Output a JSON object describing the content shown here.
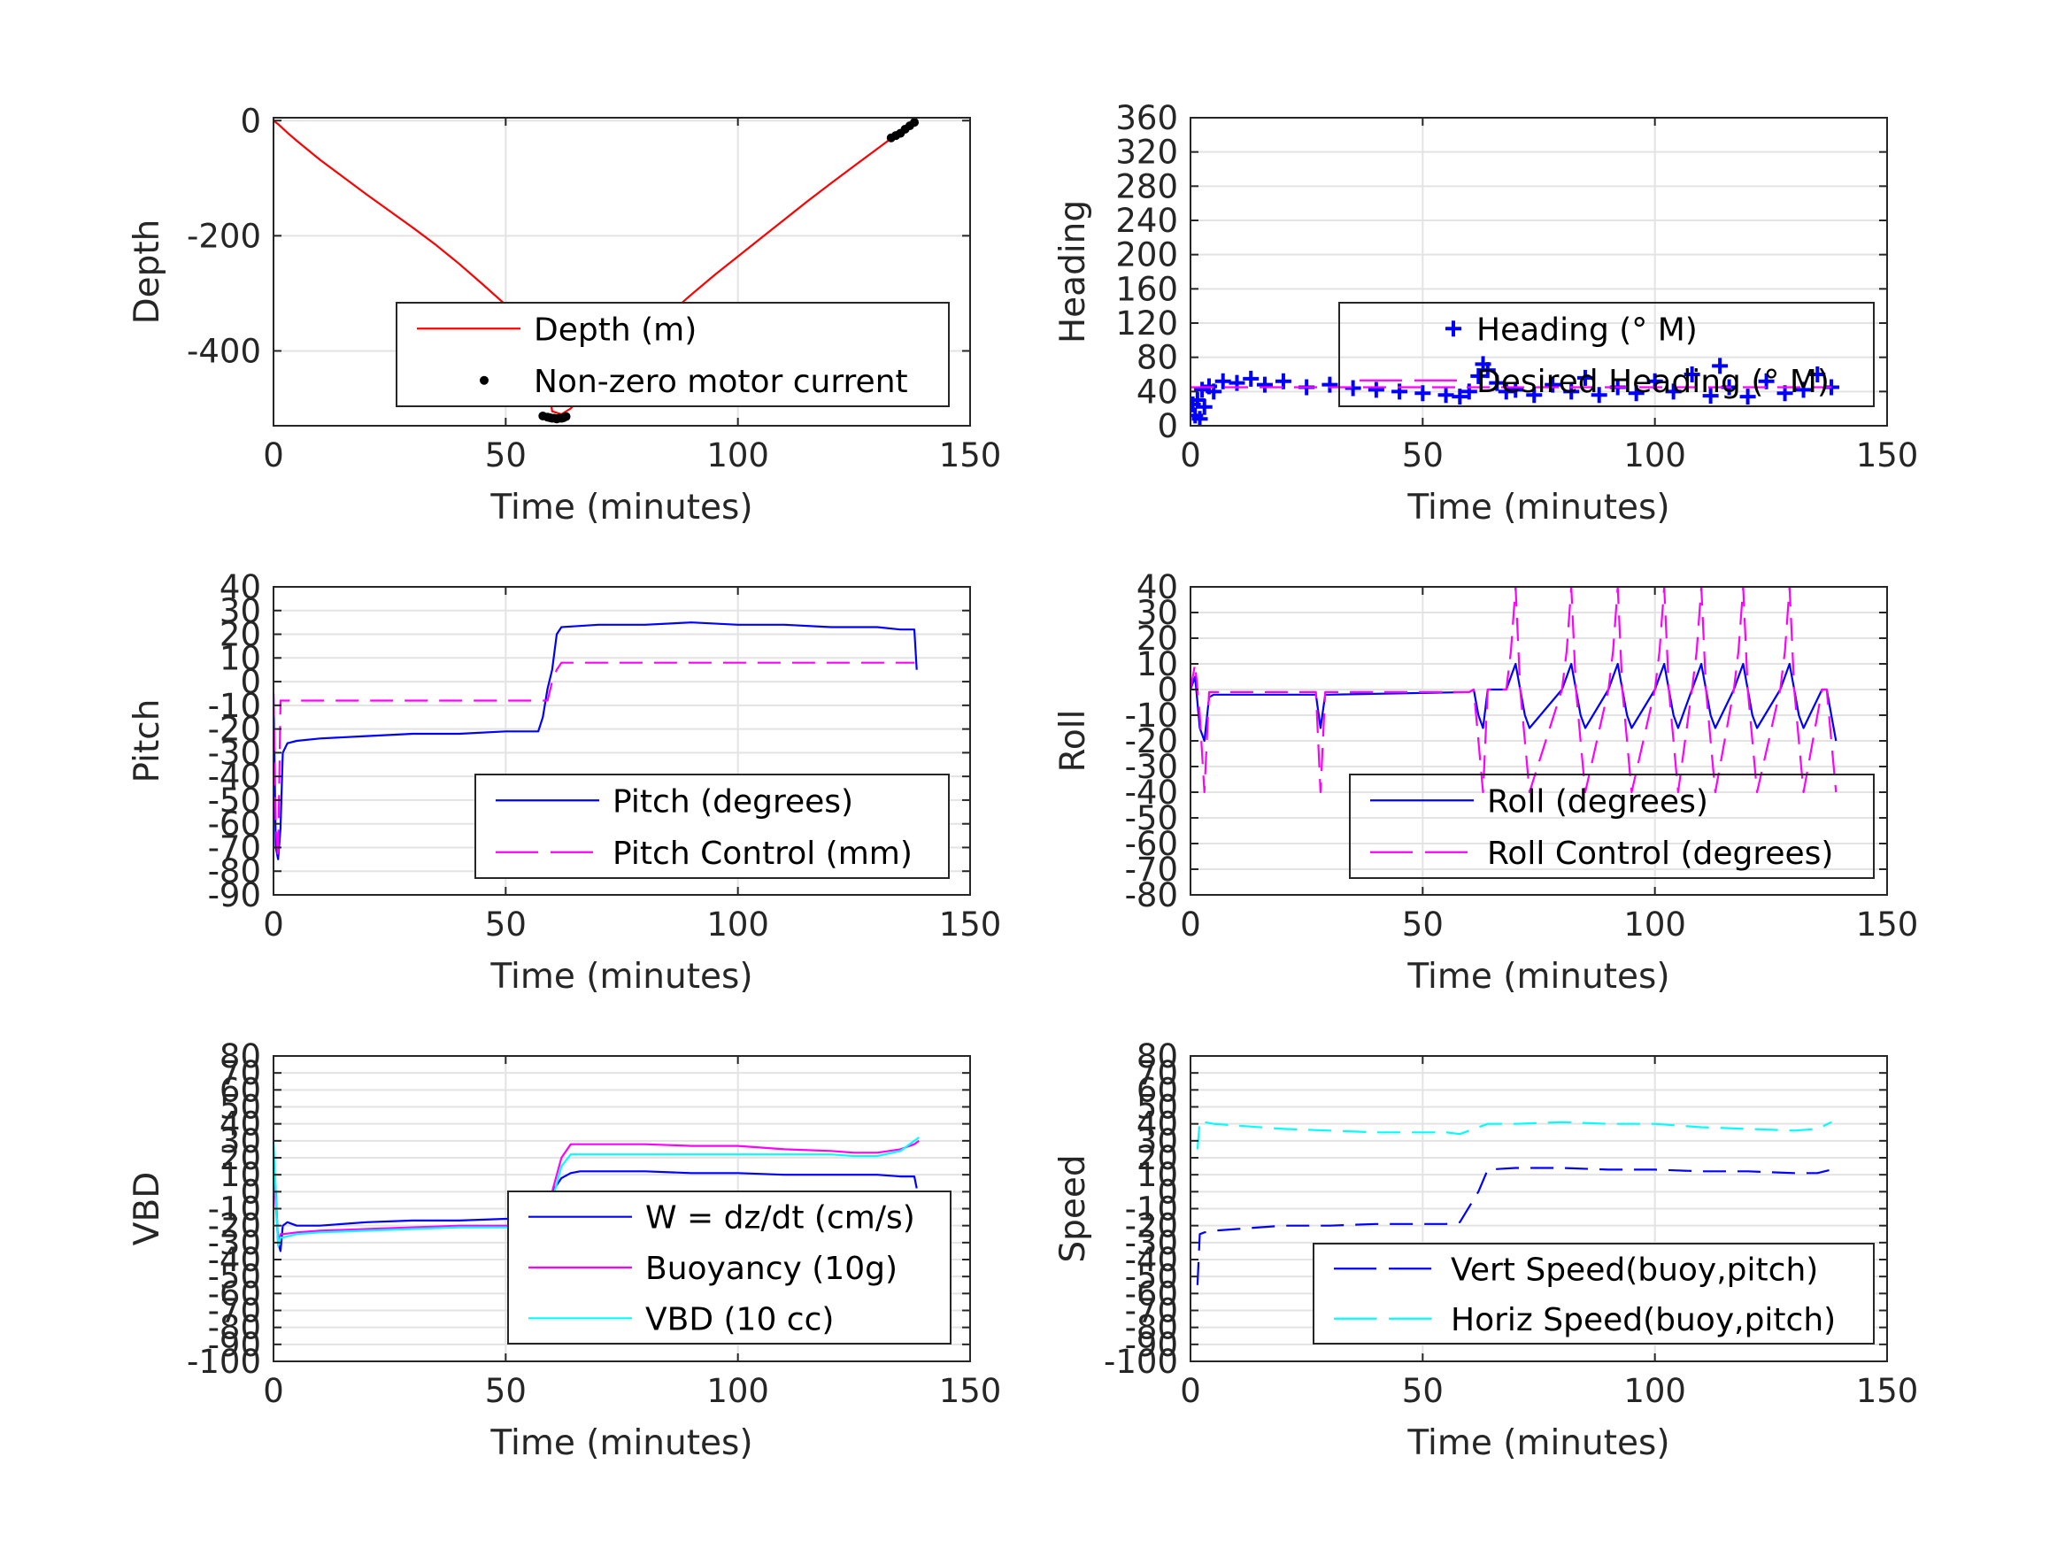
{
  "chart_data": [
    {
      "type": "line",
      "xlabel": "Time (minutes)",
      "ylabel": "Depth",
      "xlim": [
        0,
        150
      ],
      "ylim": [
        -530,
        5
      ],
      "xticks": [
        0,
        50,
        100,
        150
      ],
      "yticks": [
        -400,
        -200,
        0
      ],
      "grid": true,
      "legend_position": "bottom-right",
      "series": [
        {
          "name": "Depth (m)",
          "style": "solid",
          "color": "#ff0000",
          "x": [
            0,
            1,
            3,
            5,
            10,
            15,
            20,
            25,
            30,
            35,
            40,
            45,
            50,
            55,
            58,
            60,
            62,
            64,
            66,
            70,
            75,
            80,
            85,
            90,
            95,
            100,
            105,
            110,
            115,
            120,
            125,
            130,
            135,
            138
          ],
          "y": [
            0,
            -6,
            -21,
            -35,
            -68,
            -98,
            -128,
            -157,
            -186,
            -216,
            -249,
            -284,
            -320,
            -357,
            -385,
            -505,
            -510,
            -500,
            -480,
            -448,
            -410,
            -373,
            -337,
            -302,
            -268,
            -236,
            -204,
            -172,
            -140,
            -109,
            -79,
            -49,
            -19,
            -2
          ]
        },
        {
          "name": "Non-zero motor current",
          "style": "dots",
          "color": "#000000",
          "x": [
            58,
            59,
            59.5,
            60,
            60.5,
            61,
            61.5,
            62,
            62.5,
            63,
            133,
            134,
            135,
            136,
            137,
            138
          ],
          "y": [
            -513,
            -515,
            -516,
            -517,
            -517,
            -518,
            -517,
            -517,
            -516,
            -514,
            -30,
            -26,
            -22,
            -15,
            -9,
            -3
          ]
        }
      ]
    },
    {
      "type": "scatter",
      "xlabel": "Time (minutes)",
      "ylabel": "Heading",
      "xlim": [
        0,
        150
      ],
      "ylim": [
        0,
        360
      ],
      "xticks": [
        0,
        50,
        100,
        150
      ],
      "yticks": [
        0,
        40,
        80,
        120,
        160,
        200,
        240,
        280,
        320,
        360
      ],
      "grid": true,
      "legend_position": "bottom-right",
      "series": [
        {
          "name": "Heading (° M)",
          "style": "plus",
          "color": "#0000ff",
          "x": [
            0.5,
            1,
            1.5,
            2,
            2.5,
            3,
            4,
            5,
            7,
            10,
            13,
            16,
            20,
            25,
            30,
            35,
            40,
            45,
            50,
            55,
            58,
            60,
            62,
            63,
            64,
            66,
            68,
            70,
            74,
            78,
            82,
            85,
            88,
            92,
            96,
            100,
            104,
            108,
            112,
            114,
            116,
            120,
            124,
            128,
            132,
            135,
            138
          ],
          "y": [
            25,
            12,
            30,
            8,
            42,
            22,
            46,
            40,
            52,
            50,
            55,
            48,
            52,
            45,
            48,
            44,
            42,
            40,
            38,
            36,
            34,
            40,
            58,
            72,
            65,
            50,
            40,
            42,
            36,
            48,
            40,
            56,
            36,
            45,
            38,
            52,
            40,
            60,
            35,
            70,
            45,
            34,
            52,
            38,
            42,
            60,
            45
          ]
        },
        {
          "name": "Desired Heading (° M)",
          "style": "dashed",
          "color": "#ff00ff",
          "x": [
            0,
            138
          ],
          "y": [
            45,
            45
          ]
        }
      ]
    },
    {
      "type": "line",
      "xlabel": "Time (minutes)",
      "ylabel": "Pitch",
      "xlim": [
        0,
        150
      ],
      "ylim": [
        -90,
        40
      ],
      "xticks": [
        0,
        50,
        100,
        150
      ],
      "yticks": [
        -90,
        -80,
        -70,
        -60,
        -50,
        -40,
        -30,
        -20,
        -10,
        0,
        10,
        20,
        30,
        40
      ],
      "grid": true,
      "legend_position": "bottom-right",
      "series": [
        {
          "name": "Pitch (degrees)",
          "style": "solid",
          "color": "#0000ff",
          "x": [
            0,
            0.5,
            1,
            1.5,
            2,
            3,
            5,
            10,
            20,
            30,
            40,
            50,
            57,
            58,
            59,
            60,
            61,
            62,
            70,
            80,
            90,
            100,
            110,
            120,
            130,
            135,
            138,
            138.5
          ],
          "y": [
            -5,
            -70,
            -75,
            -62,
            -30,
            -26,
            -25,
            -24,
            -23,
            -22,
            -22,
            -21,
            -21,
            -15,
            -3,
            5,
            20,
            23,
            24,
            24,
            25,
            24,
            24,
            23,
            23,
            22,
            22,
            5
          ]
        },
        {
          "name": "Pitch Control (mm)",
          "style": "dashed",
          "color": "#ff00ff",
          "x": [
            0,
            0.5,
            1,
            1.5,
            58,
            59,
            60,
            61,
            62,
            138
          ],
          "y": [
            -5,
            -60,
            -75,
            -8,
            -8,
            -8,
            0,
            5,
            8,
            8
          ]
        }
      ]
    },
    {
      "type": "line",
      "xlabel": "Time (minutes)",
      "ylabel": "Roll",
      "xlim": [
        0,
        150
      ],
      "ylim": [
        -80,
        40
      ],
      "xticks": [
        0,
        50,
        100,
        150
      ],
      "yticks": [
        -80,
        -70,
        -60,
        -50,
        -40,
        -30,
        -20,
        -10,
        0,
        10,
        20,
        30,
        40
      ],
      "grid": true,
      "legend_position": "bottom-right",
      "series": [
        {
          "name": "Roll (degrees)",
          "style": "solid",
          "color": "#0000ff",
          "x": [
            0,
            1,
            2,
            3,
            4,
            5,
            27,
            28,
            29,
            30,
            60,
            61,
            62,
            63,
            64,
            68,
            69,
            70,
            71,
            72,
            73,
            80,
            81,
            82,
            83,
            84,
            85,
            90,
            91,
            92,
            93,
            94,
            95,
            100,
            101,
            102,
            103,
            104,
            105,
            108,
            109,
            110,
            111,
            112,
            113,
            117,
            118,
            119,
            120,
            121,
            122,
            127,
            128,
            129,
            130,
            131,
            132,
            136,
            137,
            138,
            139
          ],
          "y": [
            0,
            5,
            -15,
            -20,
            -3,
            -2,
            -2,
            -15,
            -2,
            -2,
            -1,
            0,
            -10,
            -15,
            0,
            0,
            5,
            10,
            0,
            -10,
            -15,
            0,
            5,
            10,
            0,
            -10,
            -15,
            0,
            5,
            10,
            0,
            -10,
            -15,
            0,
            5,
            10,
            0,
            -10,
            -15,
            0,
            5,
            10,
            0,
            -10,
            -15,
            0,
            5,
            10,
            0,
            -10,
            -15,
            0,
            5,
            10,
            0,
            -10,
            -15,
            0,
            0,
            -10,
            -20
          ]
        },
        {
          "name": "Roll Control (degrees)",
          "style": "dashed",
          "color": "#ff00ff",
          "x": [
            0,
            1,
            2,
            3,
            4,
            5,
            27,
            28,
            29,
            30,
            60,
            61,
            62,
            63,
            64,
            68,
            69,
            70,
            71,
            72,
            73,
            80,
            81,
            82,
            83,
            84,
            85,
            90,
            91,
            92,
            93,
            94,
            95,
            100,
            101,
            102,
            103,
            104,
            105,
            108,
            109,
            110,
            111,
            112,
            113,
            117,
            118,
            119,
            120,
            121,
            122,
            127,
            128,
            129,
            130,
            131,
            132,
            136,
            137,
            138,
            139
          ],
          "y": [
            0,
            10,
            -10,
            -40,
            -1,
            -1,
            -1,
            -40,
            -1,
            -1,
            -1,
            0,
            -20,
            -40,
            0,
            0,
            15,
            40,
            0,
            -20,
            -40,
            0,
            15,
            40,
            0,
            -20,
            -40,
            0,
            15,
            40,
            0,
            -20,
            -40,
            0,
            15,
            40,
            0,
            -20,
            -40,
            0,
            15,
            40,
            0,
            -20,
            -40,
            0,
            15,
            40,
            0,
            -20,
            -40,
            0,
            15,
            40,
            0,
            -20,
            -40,
            0,
            0,
            -20,
            -40
          ]
        }
      ]
    },
    {
      "type": "line",
      "xlabel": "Time (minutes)",
      "ylabel": "VBD",
      "xlim": [
        0,
        150
      ],
      "ylim": [
        -100,
        80
      ],
      "xticks": [
        0,
        50,
        100,
        150
      ],
      "yticks": [
        -100,
        -90,
        -80,
        -70,
        -60,
        -50,
        -40,
        -30,
        -20,
        -10,
        0,
        10,
        20,
        30,
        40,
        50,
        60,
        70,
        80
      ],
      "grid": true,
      "legend_position": "bottom-right",
      "series": [
        {
          "name": "W = dz/dt (cm/s)",
          "style": "solid",
          "color": "#0000ff",
          "x": [
            0,
            0.5,
            1,
            1.5,
            2,
            3,
            5,
            10,
            20,
            30,
            40,
            50,
            57,
            58,
            59,
            60,
            62,
            64,
            66,
            70,
            80,
            90,
            100,
            110,
            120,
            130,
            135,
            138,
            138.5
          ],
          "y": [
            20,
            0,
            -30,
            -35,
            -20,
            -18,
            -20,
            -20,
            -18,
            -17,
            -17,
            -16,
            -16,
            -13,
            -8,
            0,
            8,
            11,
            12,
            12,
            12,
            11,
            11,
            10,
            10,
            10,
            9,
            9,
            2
          ]
        },
        {
          "name": "Buoyancy (10g)",
          "style": "solid",
          "color": "#ff00ff",
          "x": [
            0,
            1,
            1.5,
            2,
            5,
            10,
            20,
            30,
            40,
            50,
            57,
            58,
            60,
            62,
            64,
            70,
            80,
            90,
            100,
            110,
            120,
            125,
            130,
            135,
            138,
            139
          ],
          "y": [
            15,
            -30,
            -25,
            -25,
            -24,
            -23,
            -22,
            -21,
            -20,
            -20,
            -20,
            -20,
            0,
            20,
            28,
            28,
            28,
            27,
            27,
            25,
            24,
            23,
            23,
            25,
            28,
            30
          ]
        },
        {
          "name": "VBD (10 cc)",
          "style": "solid",
          "color": "#00ffff",
          "x": [
            0,
            1,
            1.5,
            2,
            5,
            10,
            20,
            30,
            40,
            50,
            57,
            58,
            60,
            62,
            64,
            70,
            80,
            90,
            100,
            110,
            120,
            125,
            130,
            135,
            138,
            139
          ],
          "y": [
            30,
            -32,
            -27,
            -27,
            -25,
            -24,
            -23,
            -22,
            -21,
            -21,
            -21,
            -21,
            -5,
            15,
            22,
            22,
            22,
            22,
            22,
            22,
            22,
            21,
            21,
            24,
            30,
            32
          ]
        }
      ]
    },
    {
      "type": "line",
      "xlabel": "Time (minutes)",
      "ylabel": "Speed",
      "xlim": [
        0,
        150
      ],
      "ylim": [
        -100,
        80
      ],
      "xticks": [
        0,
        50,
        100,
        150
      ],
      "yticks": [
        -100,
        -90,
        -80,
        -70,
        -60,
        -50,
        -40,
        -30,
        -20,
        -10,
        0,
        10,
        20,
        30,
        40,
        50,
        60,
        70,
        80
      ],
      "grid": true,
      "legend_position": "bottom-right",
      "series": [
        {
          "name": "Vert Speed(buoy,pitch)",
          "style": "dashed",
          "color": "#0000ff",
          "x": [
            1.5,
            2,
            3,
            5,
            10,
            20,
            30,
            40,
            50,
            55,
            58,
            62,
            64,
            70,
            80,
            90,
            100,
            110,
            120,
            130,
            135,
            138
          ],
          "y": [
            -55,
            -25,
            -24,
            -23,
            -22,
            -20,
            -20,
            -19,
            -19,
            -19,
            -18,
            0,
            13,
            14,
            14,
            13,
            13,
            12,
            12,
            11,
            11,
            13
          ]
        },
        {
          "name": "Horiz Speed(buoy,pitch)",
          "style": "dashed",
          "color": "#00ffff",
          "x": [
            1.5,
            2,
            3,
            5,
            10,
            20,
            30,
            40,
            50,
            55,
            58,
            62,
            64,
            70,
            80,
            90,
            100,
            110,
            120,
            130,
            135,
            138
          ],
          "y": [
            25,
            42,
            41,
            40,
            39,
            37,
            36,
            35,
            35,
            35,
            34,
            38,
            40,
            40,
            41,
            40,
            40,
            38,
            37,
            36,
            37,
            41
          ]
        }
      ]
    }
  ]
}
